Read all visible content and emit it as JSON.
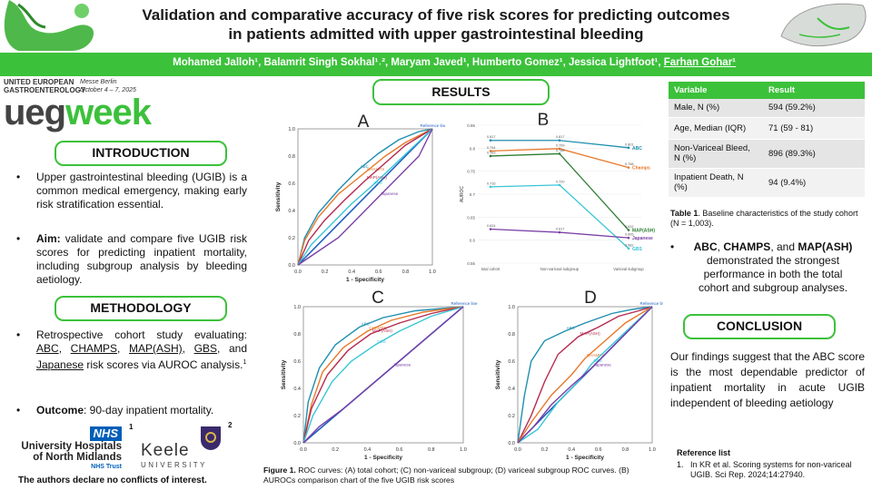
{
  "header": {
    "title_line1": "Validation and comparative accuracy of five risk scores for predicting outcomes",
    "title_line2": "in patients admitted with upper gastrointestinal bleeding",
    "authors_main": "Mohamed Jalloh¹, Balamrit Singh Sokhal¹˒², Maryam Javed¹, Humberto Gomez¹, Jessica Lightfoot¹, ",
    "authors_underlined": "Farhan Gohar¹"
  },
  "logo": {
    "ueg_line1": "UNITED EUROPEAN",
    "ueg_line2": "GASTROENTEROLOGY",
    "ueg": "ueg",
    "week": "week",
    "venue": "Messe Berlin",
    "dates": "October 4 – 7, 2025"
  },
  "intro": {
    "heading": "INTRODUCTION",
    "bullet1": "Upper gastrointestinal bleeding (UGIB) is a common medical emergency, making early risk stratification essential.",
    "aim_label": "Aim:",
    "aim_text": " validate and compare five UGIB risk scores for predicting inpatient mortality, including subgroup analysis by bleeding aetiology."
  },
  "methodology": {
    "heading": "METHODOLOGY",
    "lead": "Retrospective cohort study evaluating:",
    "scores": [
      "ABC",
      "CHAMPS",
      "MAP(ASH)",
      "GBS",
      "Japanese"
    ],
    "sep1": ", ",
    "sep_and": ", and ",
    "tail": " risk scores via AUROC analysis.",
    "ref_mark": "1",
    "outcome_label": "Outcome",
    "outcome_text": ": 90-day inpatient mortality."
  },
  "affiliations": {
    "nhs": "NHS",
    "nhs_mark": "1",
    "uhnm_line1": "University Hospitals",
    "uhnm_line2": "of North Midlands",
    "uhnm_trust": "NHS Trust",
    "keele_line1": "Keele",
    "keele_line2": "UNIVERSITY",
    "keele_mark": "2"
  },
  "conflicts": "The authors declare no conflicts of interest.",
  "results": {
    "heading": "RESULTS",
    "figure_caption_lead": "Figure 1.",
    "figure_caption": " ROC curves: (A) total cohort; (C) non-variceal subgroup; (D) variceal subgroup ROC curves. (B) AUROCs comparison chart of the five UGIB risk scores",
    "panel_letters": [
      "A",
      "B",
      "C",
      "D"
    ]
  },
  "table": {
    "headers": [
      "Variable",
      "Result"
    ],
    "rows": [
      [
        "Male, N (%)",
        "594 (59.2%)"
      ],
      [
        "Age, Median (IQR)",
        "71 (59 - 81)"
      ],
      [
        "Non-Variceal Bleed, N (%)",
        "896 (89.3%)"
      ],
      [
        "Inpatient Death, N (%)",
        "94 (9.4%)"
      ]
    ],
    "caption_lead": "Table 1",
    "caption": ". Baseline characteristics of the study cohort (N = 1,003)."
  },
  "findings": {
    "scores": [
      "ABC",
      "CHAMPS",
      "MAP(ASH)"
    ],
    "sep": ", ",
    "and": ", and ",
    "text": " demonstrated the strongest performance in both the total cohort and subgroup analyses."
  },
  "conclusion": {
    "heading": "CONCLUSION",
    "text": "Our findings suggest that the ABC score is the most dependable predictor of inpatient mortality in acute UGIB independent of bleeding aetiology"
  },
  "references": {
    "heading": "Reference list",
    "items": [
      "In KR et al. Scoring systems for non-variceal UGIB. Sci Rep. 2024;14:27940."
    ]
  },
  "colors": {
    "accent": "#3cc13b",
    "abc": "#1f8fb0",
    "champs": "#e8792b",
    "mapash": "#2e7d32",
    "japanese": "#7b3fa6",
    "gbs": "#39c6d6",
    "reference": "#1f5fbf"
  },
  "chart_data": [
    {
      "type": "line",
      "panel": "A",
      "xlabel": "1 - Specificity",
      "ylabel": "Sensitivity",
      "xlim": [
        0,
        1
      ],
      "ylim": [
        0,
        1
      ],
      "x_ticks": [
        "0.0",
        "0.2",
        "0.4",
        "0.6",
        "0.8",
        "1.0"
      ],
      "y_ticks": [
        "0.0",
        "0.2",
        "0.4",
        "0.6",
        "0.8",
        "1.0"
      ],
      "reference_label": "Reference line",
      "series": [
        {
          "name": "ABC",
          "color": "#1f8fb0",
          "x": [
            0,
            0.05,
            0.15,
            0.3,
            0.45,
            0.6,
            0.75,
            0.9,
            1
          ],
          "y": [
            0,
            0.2,
            0.38,
            0.55,
            0.7,
            0.82,
            0.92,
            0.98,
            1
          ]
        },
        {
          "name": "CHAMPS",
          "color": "#e8792b",
          "x": [
            0,
            0.05,
            0.15,
            0.3,
            0.5,
            0.65,
            0.8,
            1
          ],
          "y": [
            0,
            0.18,
            0.35,
            0.52,
            0.68,
            0.8,
            0.9,
            1
          ]
        },
        {
          "name": "MAP(ASH)",
          "color": "#b5294e",
          "x": [
            0,
            0.08,
            0.2,
            0.35,
            0.5,
            0.65,
            0.8,
            1
          ],
          "y": [
            0,
            0.18,
            0.33,
            0.48,
            0.62,
            0.75,
            0.88,
            1
          ]
        },
        {
          "name": "GBS",
          "color": "#39c6d6",
          "x": [
            0,
            0.1,
            0.25,
            0.4,
            0.55,
            0.7,
            0.85,
            1
          ],
          "y": [
            0,
            0.15,
            0.3,
            0.45,
            0.58,
            0.72,
            0.86,
            1
          ]
        },
        {
          "name": "Japanese",
          "color": "#7b3fa6",
          "x": [
            0,
            0.15,
            0.3,
            0.45,
            0.6,
            0.75,
            0.9,
            1
          ],
          "y": [
            0,
            0.1,
            0.2,
            0.35,
            0.5,
            0.65,
            0.8,
            1
          ]
        }
      ]
    },
    {
      "type": "line",
      "panel": "B",
      "ylabel": "AUROC",
      "categories": [
        "total cohort",
        "Non-variceal subgroup",
        "Variceal subgroup"
      ],
      "ylim": [
        0.55,
        0.85
      ],
      "y_ticks": [
        "0.85",
        "0.8",
        "0.75",
        "0.7",
        "0.65",
        "0.6",
        "0.55"
      ],
      "series": [
        {
          "name": "ABC",
          "color": "#1f8fb0",
          "values": [
            0.817,
            0.817,
            0.801
          ],
          "labels": [
            "0.817",
            "0.817",
            "0.801"
          ]
        },
        {
          "name": "Champs",
          "color": "#e8792b",
          "values": [
            0.794,
            0.799,
            0.758
          ],
          "labels": [
            "0.794",
            "0.799",
            "0.758"
          ]
        },
        {
          "name": "MAP(ASH)",
          "color": "#2e7d32",
          "values": [
            0.783,
            0.788,
            0.622
          ],
          "labels": [
            "0.783",
            "0.788",
            "0.622"
          ]
        },
        {
          "name": "GBS",
          "color": "#39c6d6",
          "values": [
            0.716,
            0.72,
            0.582
          ],
          "labels": [
            "0.716",
            "0.720",
            "0.582"
          ]
        },
        {
          "name": "Japanese",
          "color": "#7b3fa6",
          "values": [
            0.624,
            0.617,
            0.605
          ],
          "labels": [
            "0.624",
            "0.617",
            "0.605"
          ]
        }
      ]
    },
    {
      "type": "line",
      "panel": "C",
      "xlabel": "1 - Specificity",
      "ylabel": "Sensitivity",
      "xlim": [
        0,
        1
      ],
      "ylim": [
        0,
        1
      ],
      "x_ticks": [
        "0.0",
        "0.2",
        "0.4",
        "0.6",
        "0.8",
        "1.0"
      ],
      "y_ticks": [
        "0.0",
        "0.2",
        "0.4",
        "0.6",
        "0.8",
        "1.0"
      ],
      "reference_label": "Reference line",
      "series": [
        {
          "name": "ABC",
          "color": "#1f8fb0",
          "x": [
            0,
            0.03,
            0.1,
            0.2,
            0.35,
            0.5,
            0.7,
            1
          ],
          "y": [
            0,
            0.3,
            0.55,
            0.72,
            0.85,
            0.92,
            0.97,
            1
          ]
        },
        {
          "name": "CHAMPS",
          "color": "#e8792b",
          "x": [
            0,
            0.05,
            0.12,
            0.25,
            0.4,
            0.55,
            0.75,
            1
          ],
          "y": [
            0,
            0.28,
            0.52,
            0.7,
            0.82,
            0.9,
            0.96,
            1
          ]
        },
        {
          "name": "MAP(ASH)",
          "color": "#b5294e",
          "x": [
            0,
            0.05,
            0.15,
            0.28,
            0.42,
            0.6,
            0.8,
            1
          ],
          "y": [
            0,
            0.25,
            0.5,
            0.68,
            0.8,
            0.88,
            0.95,
            1
          ]
        },
        {
          "name": "GBS",
          "color": "#39c6d6",
          "x": [
            0,
            0.06,
            0.18,
            0.3,
            0.45,
            0.6,
            0.8,
            1
          ],
          "y": [
            0,
            0.2,
            0.45,
            0.6,
            0.72,
            0.82,
            0.93,
            1
          ]
        },
        {
          "name": "Japanese",
          "color": "#7b3fa6",
          "x": [
            0,
            0.1,
            0.25,
            0.4,
            0.55,
            0.7,
            0.85,
            1
          ],
          "y": [
            0,
            0.12,
            0.25,
            0.4,
            0.55,
            0.7,
            0.85,
            1
          ]
        }
      ]
    },
    {
      "type": "line",
      "panel": "D",
      "xlabel": "1 - Specificity",
      "ylabel": "Sensitivity",
      "xlim": [
        0,
        1
      ],
      "ylim": [
        0,
        1
      ],
      "x_ticks": [
        "0.0",
        "0.2",
        "0.4",
        "0.6",
        "0.8",
        "1.0"
      ],
      "y_ticks": [
        "0.0",
        "0.2",
        "0.4",
        "0.6",
        "0.8",
        "1.0"
      ],
      "reference_label": "Reference line",
      "series": [
        {
          "name": "ABC",
          "color": "#1f8fb0",
          "x": [
            0,
            0.05,
            0.1,
            0.2,
            0.35,
            0.5,
            0.7,
            0.85,
            1
          ],
          "y": [
            0,
            0.35,
            0.6,
            0.75,
            0.82,
            0.88,
            0.95,
            0.98,
            1
          ]
        },
        {
          "name": "MAP(ASH)",
          "color": "#b5294e",
          "x": [
            0,
            0.1,
            0.2,
            0.3,
            0.45,
            0.6,
            0.75,
            0.9,
            1
          ],
          "y": [
            0,
            0.2,
            0.45,
            0.65,
            0.78,
            0.85,
            0.93,
            0.97,
            1
          ]
        },
        {
          "name": "CHAMPS",
          "color": "#e8792b",
          "x": [
            0,
            0.1,
            0.25,
            0.4,
            0.5,
            0.65,
            0.8,
            1
          ],
          "y": [
            0,
            0.15,
            0.35,
            0.5,
            0.62,
            0.75,
            0.88,
            1
          ]
        },
        {
          "name": "GBS",
          "color": "#39c6d6",
          "x": [
            0,
            0.15,
            0.3,
            0.45,
            0.55,
            0.7,
            0.85,
            1
          ],
          "y": [
            0,
            0.1,
            0.3,
            0.45,
            0.58,
            0.72,
            0.86,
            1
          ]
        },
        {
          "name": "Japanese",
          "color": "#7b3fa6",
          "x": [
            0,
            0.12,
            0.25,
            0.4,
            0.55,
            0.7,
            0.85,
            1
          ],
          "y": [
            0,
            0.12,
            0.28,
            0.42,
            0.55,
            0.7,
            0.85,
            1
          ]
        }
      ]
    }
  ]
}
